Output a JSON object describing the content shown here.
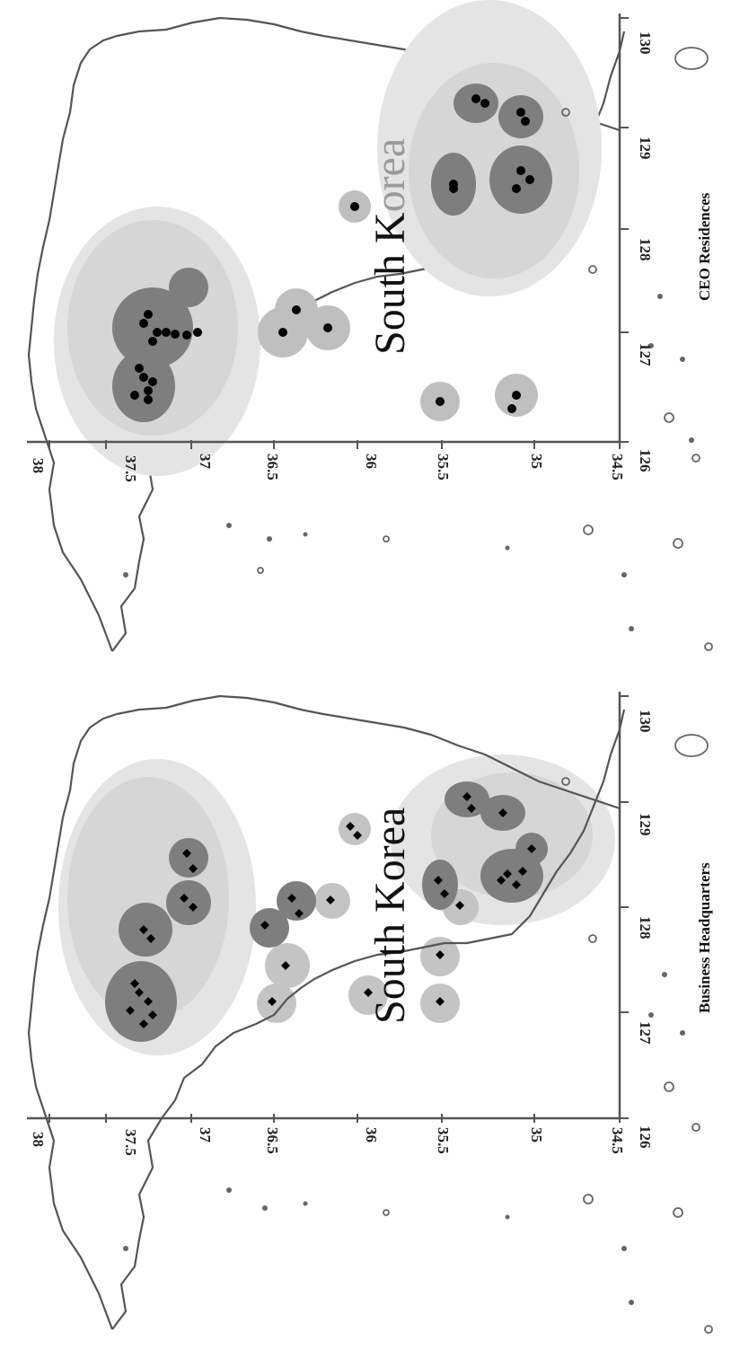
{
  "panels": [
    {
      "id": "top",
      "caption": "CEO Residences",
      "country_label_dark": "South K",
      "country_label_light": "orea",
      "marker": "circle",
      "lat_ticks": [
        "38",
        "37.5",
        "37",
        "36.5",
        "36",
        "35.5",
        "35",
        "34.5"
      ],
      "lon_ticks": [
        "126",
        "127",
        "128",
        "129",
        "130"
      ]
    },
    {
      "id": "bottom",
      "caption": "Business Headquarters",
      "country_label": "South Korea",
      "marker": "diamond",
      "lat_ticks": [
        "38",
        "37.5",
        "37",
        "36.5",
        "36",
        "35.5",
        "35",
        "34.5"
      ],
      "lon_ticks": [
        "126",
        "127",
        "128",
        "129",
        "130"
      ]
    }
  ],
  "colors": {
    "cluster_light": "#e3e3e3",
    "cluster_mid": "#bdbdbd",
    "cluster_dark": "#7a7a7a",
    "marker": "#000000",
    "coast": "#555555"
  }
}
